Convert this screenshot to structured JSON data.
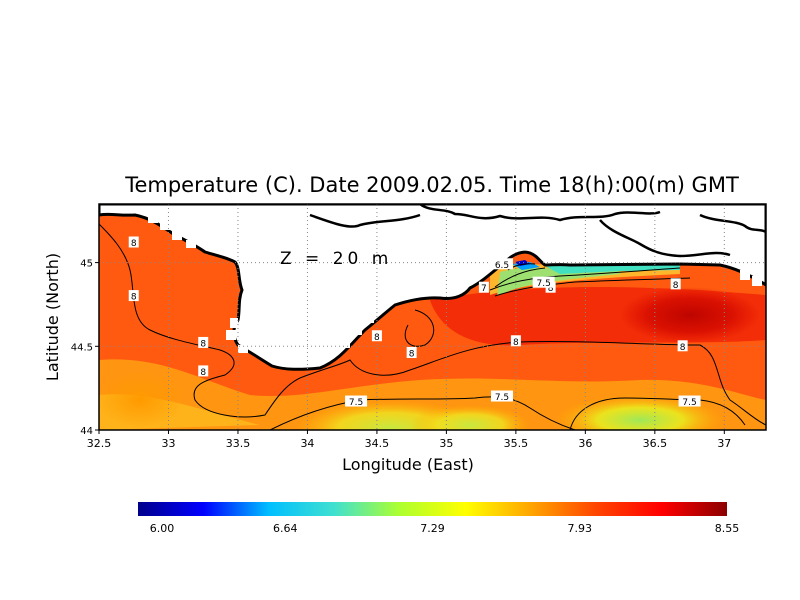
{
  "chart_data": {
    "type": "heatmap",
    "title": "Temperature (C). Date 2009.02.05. Time 18(h):00(m) GMT",
    "annotation": "Z = 20 m",
    "xlabel": "Longitude (East)",
    "ylabel": "Latitude (North)",
    "x_ticks": [
      "32.5",
      "33",
      "33.5",
      "34",
      "34.5",
      "35",
      "35.5",
      "36",
      "36.5",
      "37"
    ],
    "x_tick_values": [
      32.5,
      33,
      33.5,
      34,
      34.5,
      35,
      35.5,
      36,
      36.5,
      37
    ],
    "y_ticks": [
      "44",
      "44.5",
      "45"
    ],
    "y_tick_values": [
      44,
      44.5,
      45
    ],
    "xlim": [
      32.5,
      37.3
    ],
    "ylim": [
      44,
      45.35
    ],
    "grid": true,
    "colorbar": {
      "ticks": [
        "6.00",
        "6.64",
        "7.29",
        "7.93",
        "8.55"
      ],
      "range": [
        6.0,
        8.55
      ],
      "colors": [
        "#00008b",
        "#0000ff",
        "#00bfff",
        "#40e0d0",
        "#adff2f",
        "#ffff00",
        "#ffa500",
        "#ff4500",
        "#ff0000",
        "#8b0000"
      ]
    },
    "contour_labels": [
      {
        "text": "8",
        "lon": 32.75,
        "lat": 45.12
      },
      {
        "text": "8",
        "lon": 32.75,
        "lat": 44.8
      },
      {
        "text": "8",
        "lon": 33.25,
        "lat": 44.52
      },
      {
        "text": "8",
        "lon": 33.25,
        "lat": 44.35
      },
      {
        "text": "8",
        "lon": 34.5,
        "lat": 44.56
      },
      {
        "text": "8",
        "lon": 34.75,
        "lat": 44.46
      },
      {
        "text": "8",
        "lon": 35.5,
        "lat": 44.53
      },
      {
        "text": "8",
        "lon": 36.7,
        "lat": 44.5
      },
      {
        "text": "8",
        "lon": 36.65,
        "lat": 44.87
      },
      {
        "text": "8",
        "lon": 35.75,
        "lat": 44.85
      },
      {
        "text": "7.5",
        "lon": 34.35,
        "lat": 44.17
      },
      {
        "text": "7.5",
        "lon": 35.4,
        "lat": 44.2
      },
      {
        "text": "7.5",
        "lon": 36.75,
        "lat": 44.17
      },
      {
        "text": "7.5",
        "lon": 35.7,
        "lat": 44.88
      },
      {
        "text": "7",
        "lon": 35.27,
        "lat": 44.85
      },
      {
        "text": "6.5",
        "lon": 35.4,
        "lat": 44.99
      }
    ]
  }
}
